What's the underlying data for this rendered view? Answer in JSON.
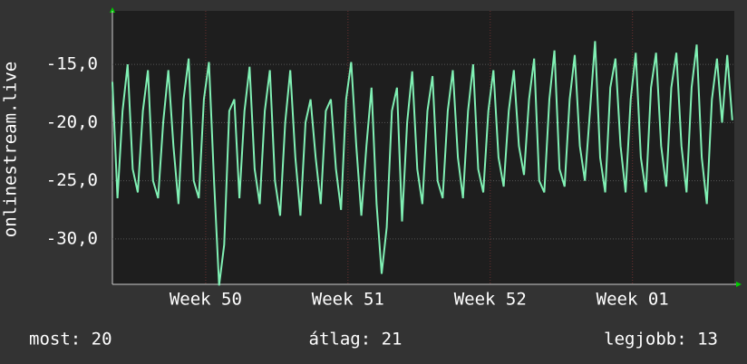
{
  "chart_data": {
    "type": "line",
    "ylabel": "onlinestream.live",
    "xlim": [
      0,
      30.6
    ],
    "xticks": [
      {
        "value": 4.59,
        "label": "Week 50"
      },
      {
        "value": 11.59,
        "label": "Week 51"
      },
      {
        "value": 18.59,
        "label": "Week 52"
      },
      {
        "value": 25.59,
        "label": "Week 01"
      }
    ],
    "ylim": [
      -33.9,
      -10.4
    ],
    "yticks": [
      {
        "value": -15,
        "label": "-15,0"
      },
      {
        "value": -20,
        "label": "-20,0"
      },
      {
        "value": -25,
        "label": "-25,0"
      },
      {
        "value": -30,
        "label": "-30,0"
      }
    ],
    "grid": true,
    "x": [
      0,
      0.25,
      0.5,
      0.75,
      1,
      1.25,
      1.5,
      1.75,
      2,
      2.25,
      2.5,
      2.75,
      3,
      3.25,
      3.5,
      3.75,
      4,
      4.25,
      4.5,
      4.75,
      5,
      5.25,
      5.5,
      5.75,
      6,
      6.25,
      6.5,
      6.75,
      7,
      7.25,
      7.5,
      7.75,
      8,
      8.25,
      8.5,
      8.75,
      9,
      9.25,
      9.5,
      9.75,
      10,
      10.25,
      10.5,
      10.75,
      11,
      11.25,
      11.5,
      11.75,
      12,
      12.25,
      12.5,
      12.75,
      13,
      13.25,
      13.5,
      13.75,
      14,
      14.25,
      14.5,
      14.75,
      15,
      15.25,
      15.5,
      15.75,
      16,
      16.25,
      16.5,
      16.75,
      17,
      17.25,
      17.5,
      17.75,
      18,
      18.25,
      18.5,
      18.75,
      19,
      19.25,
      19.5,
      19.75,
      20,
      20.25,
      20.5,
      20.75,
      21,
      21.25,
      21.5,
      21.75,
      22,
      22.25,
      22.5,
      22.75,
      23,
      23.25,
      23.5,
      23.75,
      24,
      24.25,
      24.5,
      24.75,
      25,
      25.25,
      25.5,
      25.75,
      26,
      26.25,
      26.5,
      26.75,
      27,
      27.25,
      27.5,
      27.75,
      28,
      28.25,
      28.5,
      28.75,
      29,
      29.25,
      29.5,
      29.75,
      30,
      30.25,
      30.5
    ],
    "series": [
      {
        "name": "onlinestream.live",
        "color": "#80f0b4",
        "values": [
          -16.5,
          -26.5,
          -19,
          -15,
          -24,
          -26,
          -19,
          -15.5,
          -25,
          -26.5,
          -20,
          -15.5,
          -22,
          -27,
          -18,
          -14.5,
          -25,
          -26.5,
          -18,
          -14.8,
          -25,
          -34,
          -30.5,
          -19,
          -18,
          -26.5,
          -19,
          -15.2,
          -24,
          -27,
          -19,
          -15.5,
          -25,
          -28,
          -20,
          -15.5,
          -23,
          -28,
          -20,
          -18,
          -23,
          -27,
          -19,
          -18,
          -24,
          -27.5,
          -18,
          -14.8,
          -22,
          -28,
          -22,
          -17,
          -27,
          -33,
          -29,
          -19,
          -17,
          -28.5,
          -20,
          -15.6,
          -24,
          -27,
          -19,
          -16,
          -25,
          -26.5,
          -19,
          -15.5,
          -23,
          -26.5,
          -19,
          -15,
          -24,
          -26,
          -19,
          -15.5,
          -23,
          -25.5,
          -19,
          -15.5,
          -22,
          -24.5,
          -18,
          -14.5,
          -25,
          -26,
          -18,
          -13.8,
          -24,
          -25.5,
          -18,
          -14.2,
          -22,
          -25,
          -19,
          -13,
          -23,
          -26,
          -17,
          -14.5,
          -22,
          -26,
          -18,
          -14,
          -23,
          -26,
          -17,
          -14,
          -22,
          -25.5,
          -17,
          -14,
          -22,
          -26,
          -17,
          -13.3,
          -23,
          -27,
          -18,
          -14.5,
          -20,
          -14.2,
          -19.8
        ]
      }
    ],
    "footer": {
      "current": "most: 20",
      "average": "átlag: 21",
      "best": "legjobb: 13"
    }
  }
}
